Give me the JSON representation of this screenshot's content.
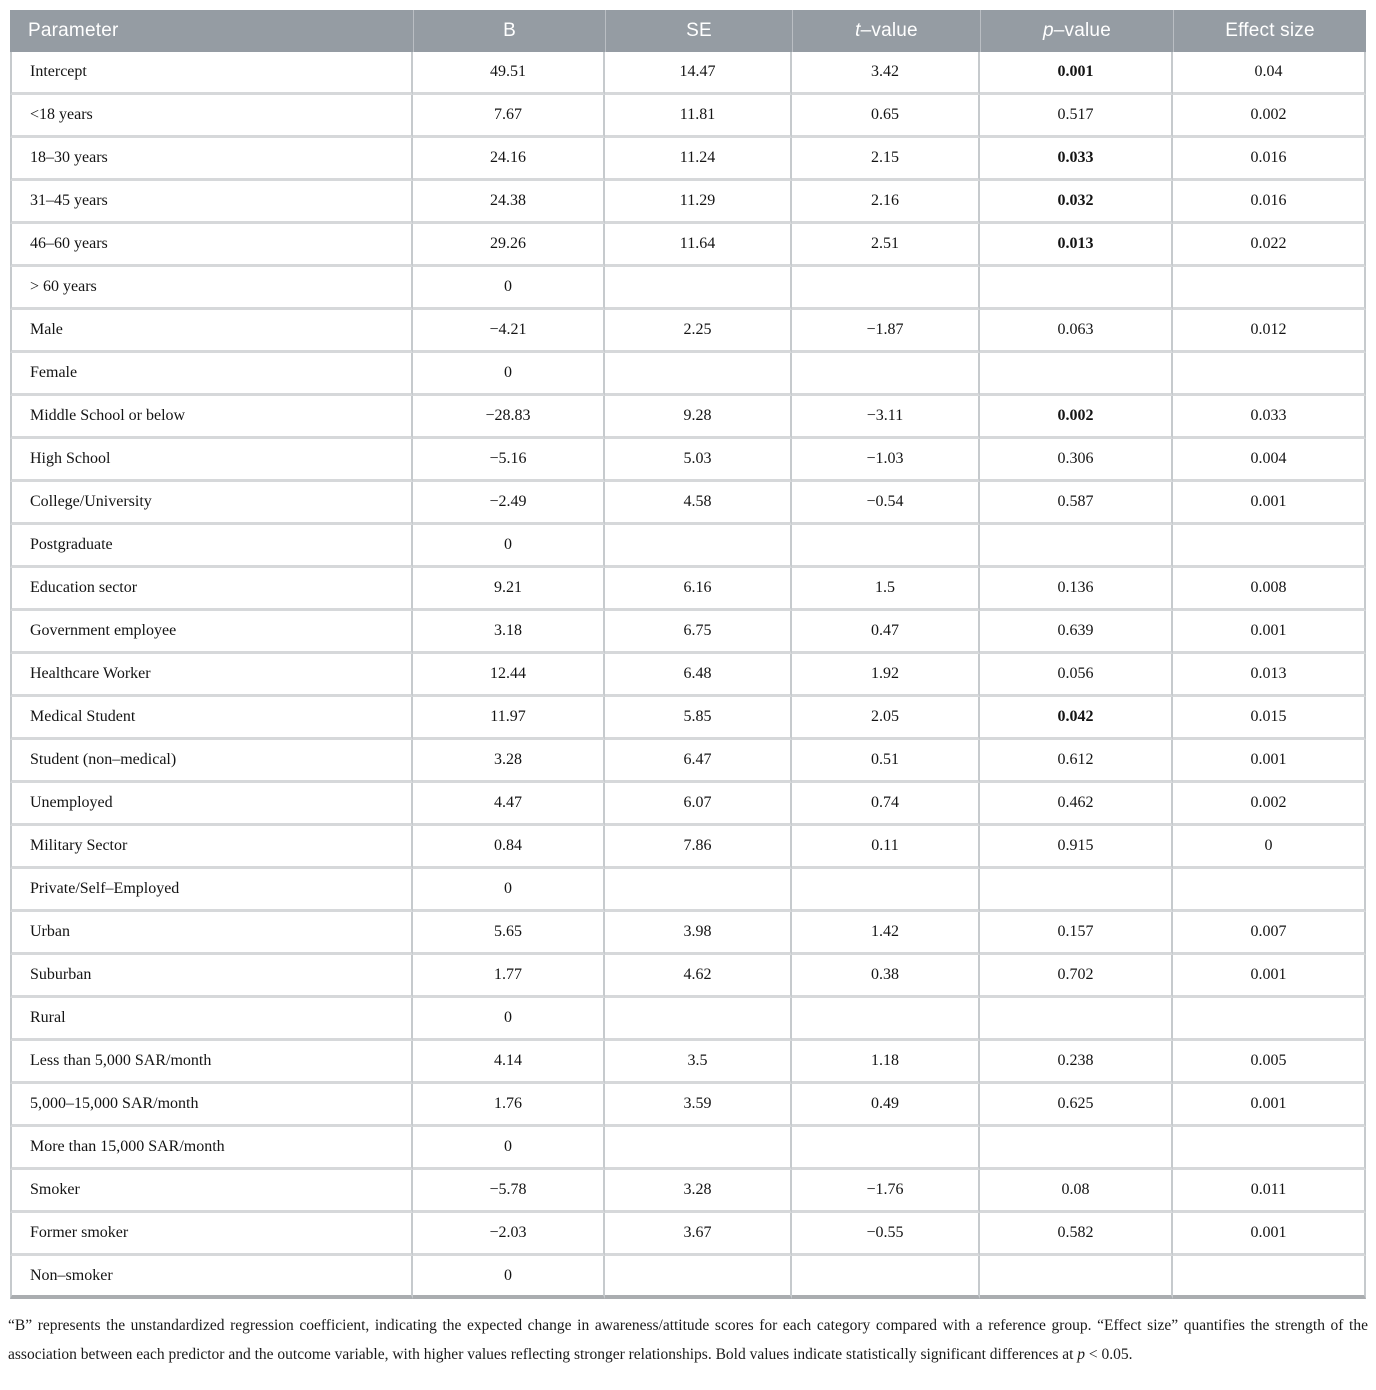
{
  "colors": {
    "header_bg": "#959CA3",
    "header_text": "#ffffff",
    "row_border": "#d6d8da",
    "col_border": "#c6cacd",
    "bottom_border": "#aaadb0"
  },
  "header": {
    "columns": [
      {
        "key": "parameter",
        "label": "Parameter"
      },
      {
        "key": "b",
        "label": "B"
      },
      {
        "key": "se",
        "label": "SE"
      },
      {
        "key": "t",
        "italic": "t",
        "rest": "–value"
      },
      {
        "key": "p",
        "italic": "p",
        "rest": "–value"
      },
      {
        "key": "effect",
        "label": "Effect size"
      }
    ]
  },
  "rows": [
    {
      "parameter": "Intercept",
      "b": "49.51",
      "se": "14.47",
      "t": "3.42",
      "p": "0.001",
      "p_bold": true,
      "effect": "0.04"
    },
    {
      "parameter": "<18 years",
      "b": "7.67",
      "se": "11.81",
      "t": "0.65",
      "p": "0.517",
      "p_bold": false,
      "effect": "0.002"
    },
    {
      "parameter": "18–30 years",
      "b": "24.16",
      "se": "11.24",
      "t": "2.15",
      "p": "0.033",
      "p_bold": true,
      "effect": "0.016"
    },
    {
      "parameter": "31–45 years",
      "b": "24.38",
      "se": "11.29",
      "t": "2.16",
      "p": "0.032",
      "p_bold": true,
      "effect": "0.016"
    },
    {
      "parameter": "46–60 years",
      "b": "29.26",
      "se": "11.64",
      "t": "2.51",
      "p": "0.013",
      "p_bold": true,
      "effect": "0.022"
    },
    {
      "parameter": "> 60 years",
      "b": "0",
      "se": "",
      "t": "",
      "p": "",
      "p_bold": false,
      "effect": ""
    },
    {
      "parameter": "Male",
      "b": "−4.21",
      "se": "2.25",
      "t": "−1.87",
      "p": "0.063",
      "p_bold": false,
      "effect": "0.012"
    },
    {
      "parameter": "Female",
      "b": "0",
      "se": "",
      "t": "",
      "p": "",
      "p_bold": false,
      "effect": ""
    },
    {
      "parameter": "Middle School or below",
      "b": "−28.83",
      "se": "9.28",
      "t": "−3.11",
      "p": "0.002",
      "p_bold": true,
      "effect": "0.033"
    },
    {
      "parameter": "High School",
      "b": "−5.16",
      "se": "5.03",
      "t": "−1.03",
      "p": "0.306",
      "p_bold": false,
      "effect": "0.004"
    },
    {
      "parameter": "College/University",
      "b": "−2.49",
      "se": "4.58",
      "t": "−0.54",
      "p": "0.587",
      "p_bold": false,
      "effect": "0.001"
    },
    {
      "parameter": "Postgraduate",
      "b": "0",
      "se": "",
      "t": "",
      "p": "",
      "p_bold": false,
      "effect": ""
    },
    {
      "parameter": "Education sector",
      "b": "9.21",
      "se": "6.16",
      "t": "1.5",
      "p": "0.136",
      "p_bold": false,
      "effect": "0.008"
    },
    {
      "parameter": "Government employee",
      "b": "3.18",
      "se": "6.75",
      "t": "0.47",
      "p": "0.639",
      "p_bold": false,
      "effect": "0.001"
    },
    {
      "parameter": "Healthcare Worker",
      "b": "12.44",
      "se": "6.48",
      "t": "1.92",
      "p": "0.056",
      "p_bold": false,
      "effect": "0.013"
    },
    {
      "parameter": "Medical Student",
      "b": "11.97",
      "se": "5.85",
      "t": "2.05",
      "p": "0.042",
      "p_bold": true,
      "effect": "0.015"
    },
    {
      "parameter": "Student (non–medical)",
      "b": "3.28",
      "se": "6.47",
      "t": "0.51",
      "p": "0.612",
      "p_bold": false,
      "effect": "0.001"
    },
    {
      "parameter": "Unemployed",
      "b": "4.47",
      "se": "6.07",
      "t": "0.74",
      "p": "0.462",
      "p_bold": false,
      "effect": "0.002"
    },
    {
      "parameter": "Military Sector",
      "b": "0.84",
      "se": "7.86",
      "t": "0.11",
      "p": "0.915",
      "p_bold": false,
      "effect": "0"
    },
    {
      "parameter": "Private/Self–Employed",
      "b": "0",
      "se": "",
      "t": "",
      "p": "",
      "p_bold": false,
      "effect": ""
    },
    {
      "parameter": "Urban",
      "b": "5.65",
      "se": "3.98",
      "t": "1.42",
      "p": "0.157",
      "p_bold": false,
      "effect": "0.007"
    },
    {
      "parameter": "Suburban",
      "b": "1.77",
      "se": "4.62",
      "t": "0.38",
      "p": "0.702",
      "p_bold": false,
      "effect": "0.001"
    },
    {
      "parameter": "Rural",
      "b": "0",
      "se": "",
      "t": "",
      "p": "",
      "p_bold": false,
      "effect": ""
    },
    {
      "parameter": "Less than 5,000 SAR/month",
      "b": "4.14",
      "se": "3.5",
      "t": "1.18",
      "p": "0.238",
      "p_bold": false,
      "effect": "0.005"
    },
    {
      "parameter": "5,000–15,000 SAR/month",
      "b": "1.76",
      "se": "3.59",
      "t": "0.49",
      "p": "0.625",
      "p_bold": false,
      "effect": "0.001"
    },
    {
      "parameter": "More than 15,000 SAR/month",
      "b": "0",
      "se": "",
      "t": "",
      "p": "",
      "p_bold": false,
      "effect": ""
    },
    {
      "parameter": "Smoker",
      "b": "−5.78",
      "se": "3.28",
      "t": "−1.76",
      "p": "0.08",
      "p_bold": false,
      "effect": "0.011"
    },
    {
      "parameter": "Former smoker",
      "b": "−2.03",
      "se": "3.67",
      "t": "−0.55",
      "p": "0.582",
      "p_bold": false,
      "effect": "0.001"
    },
    {
      "parameter": "Non–smoker",
      "b": "0",
      "se": "",
      "t": "",
      "p": "",
      "p_bold": false,
      "effect": ""
    }
  ],
  "footnote": {
    "text": "“B” represents the unstandardized regression coefficient, indicating the expected change in awareness/attitude scores for each category compared with a reference group. “Effect size” quantifies the strength of the association between each predictor and the outcome variable, with higher values reflecting stronger relationships. Bold values indicate statistically significant differences at ",
    "italic": "p",
    "rest": " < 0.05."
  }
}
